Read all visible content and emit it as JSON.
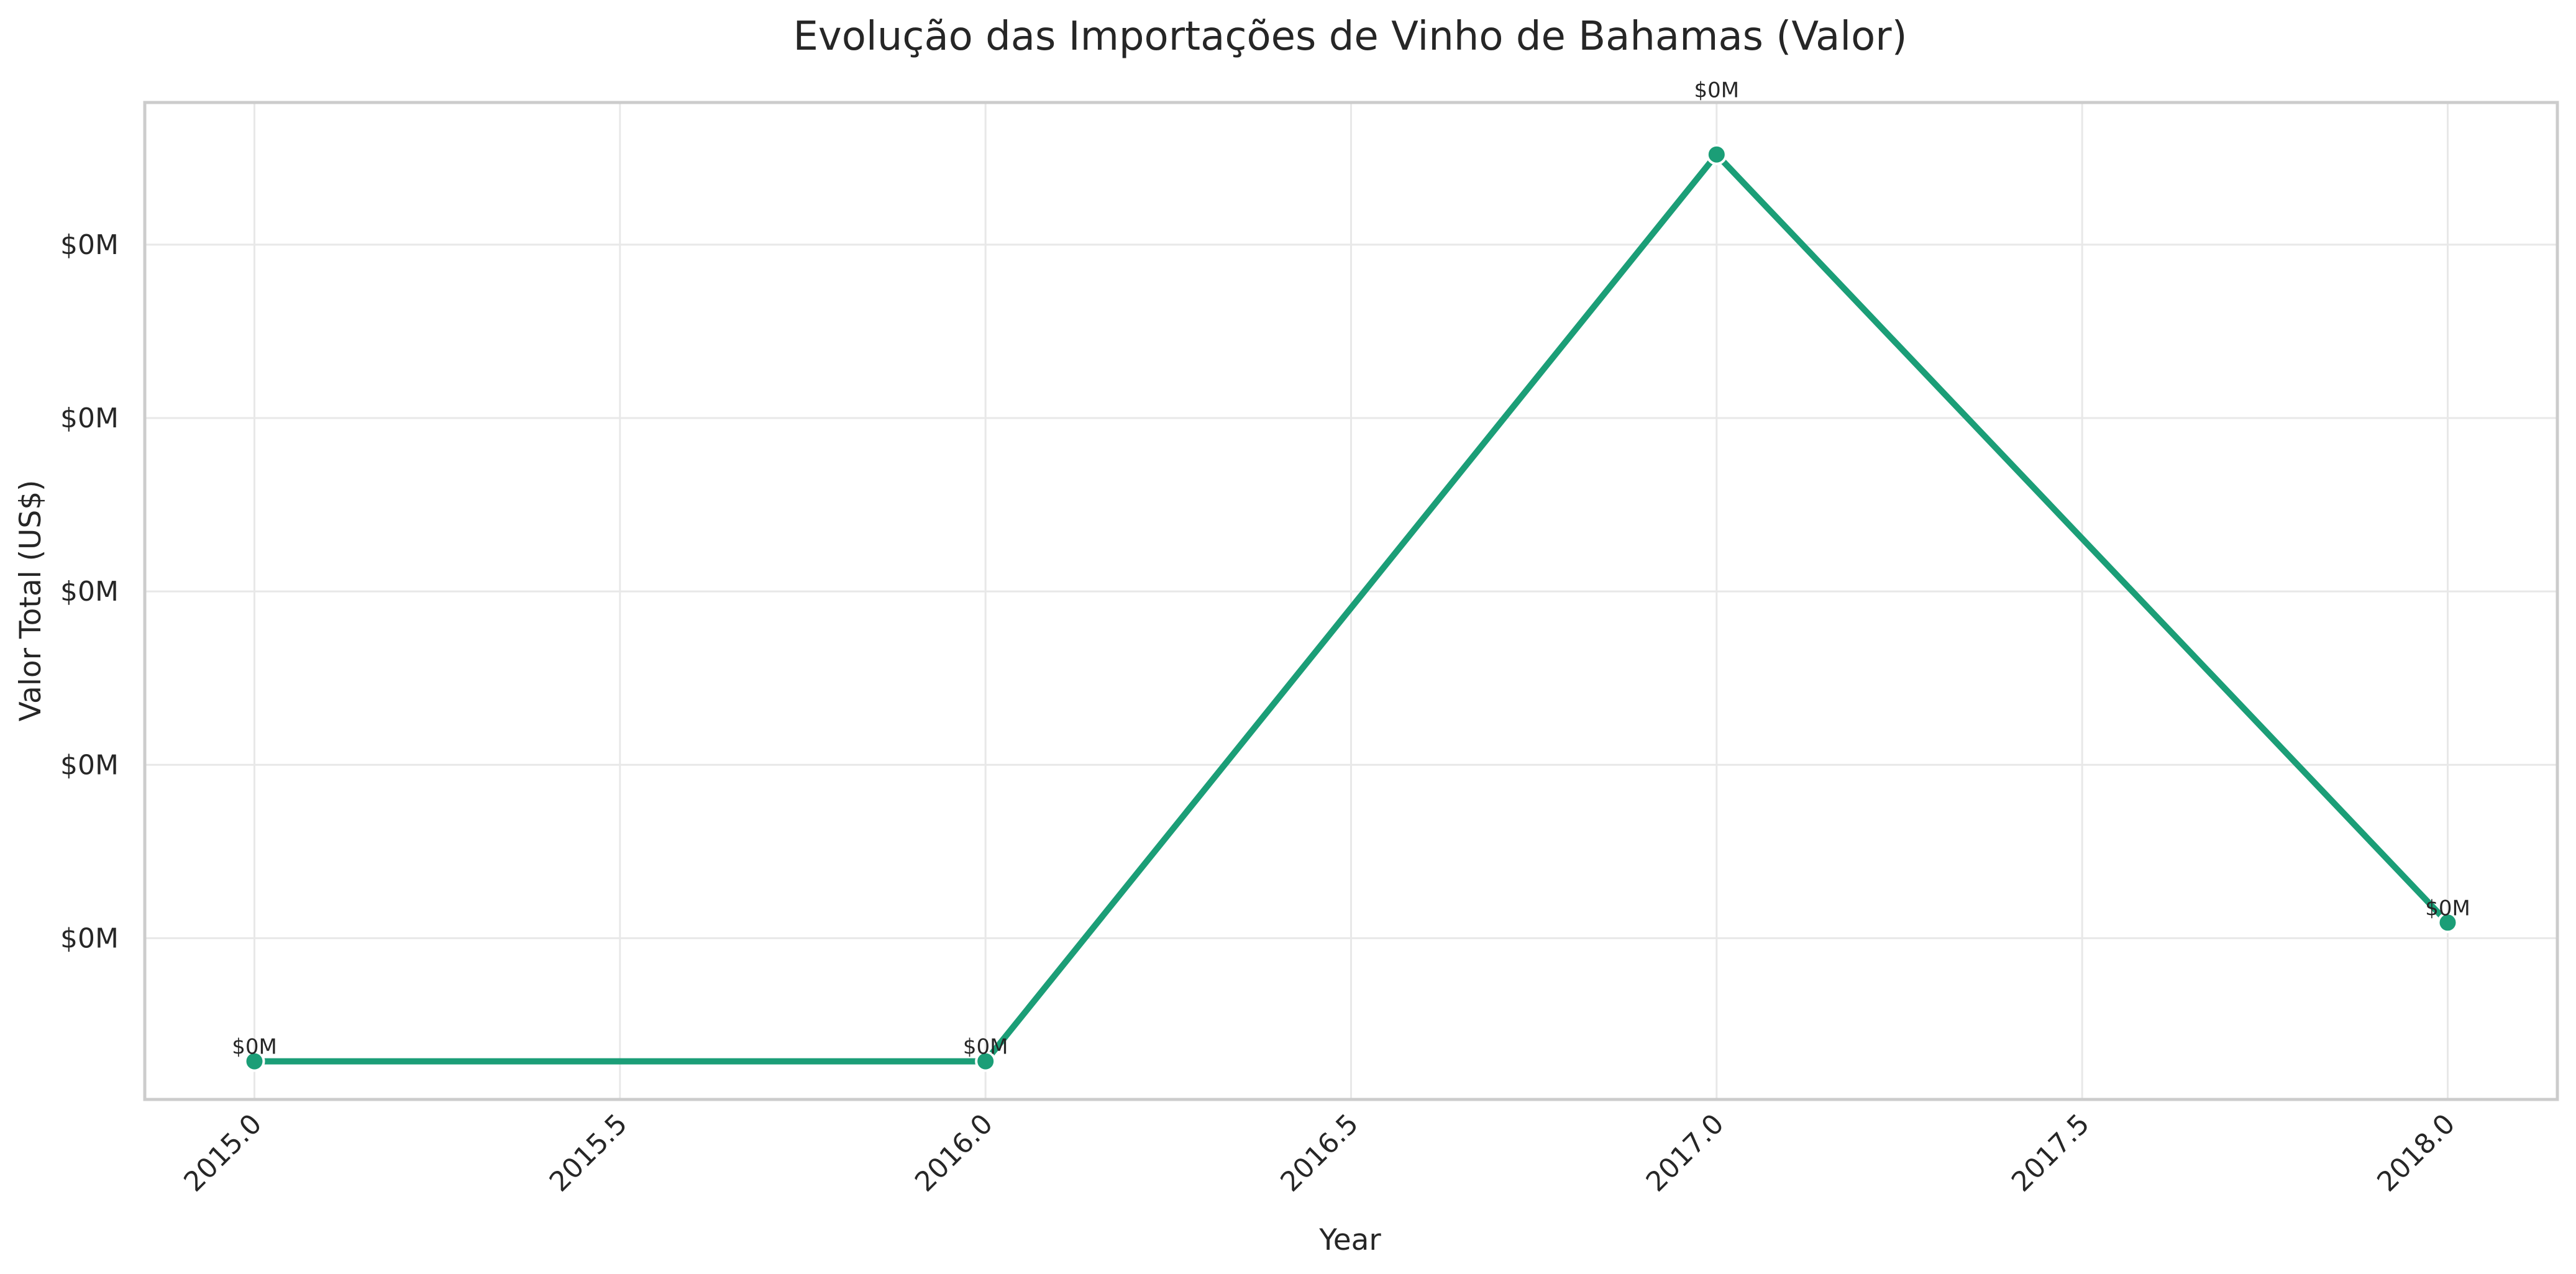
{
  "chart_data": {
    "type": "line",
    "title": "Evolução das Importações de Vinho de Bahamas (Valor)",
    "xlabel": "Year",
    "ylabel": "Valor Total (US$)",
    "x": [
      2015,
      2016,
      2017,
      2018
    ],
    "x_ticks": [
      "2015.0",
      "2015.5",
      "2016.0",
      "2016.5",
      "2017.0",
      "2017.5",
      "2018.0"
    ],
    "x_tick_values": [
      2015.0,
      2015.5,
      2016.0,
      2016.5,
      2017.0,
      2017.5,
      2018.0
    ],
    "xlim": [
      2014.85,
      2018.15
    ],
    "y_ticks": [
      "$0M",
      "$0M",
      "$0M",
      "$0M",
      "$0M"
    ],
    "y_tick_values": [
      0.0009,
      0.0019,
      0.0029,
      0.0039,
      0.0049
    ],
    "ylim": [
      -3e-05,
      0.00572
    ],
    "series": [
      {
        "values": [
          0.00019,
          0.00019,
          0.00542,
          0.00099
        ],
        "labels": [
          "$0M",
          "$0M",
          "$0M",
          "$0M"
        ],
        "color": "#1b9e77"
      }
    ],
    "grid": true,
    "legend": "none"
  }
}
